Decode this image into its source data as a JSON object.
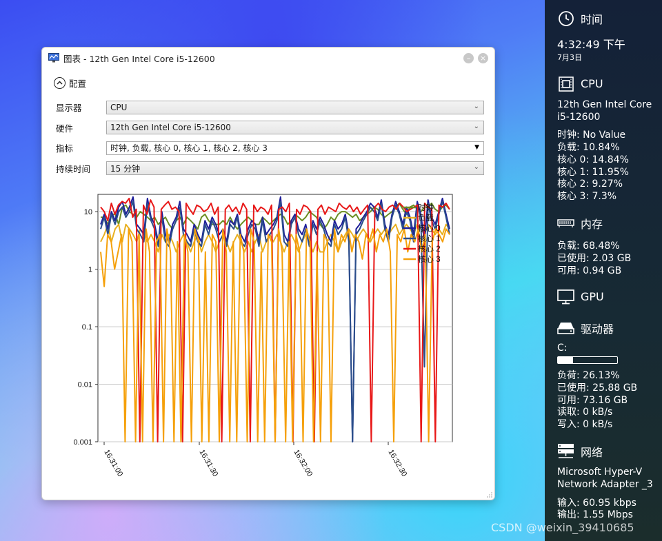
{
  "window": {
    "title": "图表 - 12th Gen Intel Core i5-12600",
    "config_label": "配置",
    "fields": [
      {
        "label": "显示器",
        "value": "CPU"
      },
      {
        "label": "硬件",
        "value": "12th Gen Intel Core i5-12600"
      },
      {
        "label": "指标",
        "value": "时钟, 负载, 核心 0, 核心 1, 核心 2, 核心 3"
      },
      {
        "label": "持续时间",
        "value": "15 分钟"
      }
    ]
  },
  "chart_data": {
    "type": "line",
    "yscale": "log",
    "ylim": [
      0.001,
      20
    ],
    "y_tick_labels": [
      "10",
      "1",
      "0.1",
      "0.01",
      "0.001"
    ],
    "x_tick_labels": [
      "16:31:00",
      "16:31:30",
      "16:32:00",
      "16:32:30"
    ],
    "grid": true,
    "legend_position": "top-right",
    "series": [
      {
        "name": "时钟",
        "color": "#6b8e23",
        "values": [
          8,
          8,
          6,
          9,
          9,
          6,
          12,
          13,
          10,
          9,
          8,
          10,
          9,
          8,
          7,
          8,
          6,
          7,
          8,
          6,
          5,
          7,
          8,
          6,
          8,
          7,
          6,
          5,
          8,
          9,
          7,
          6,
          6,
          6,
          7,
          6,
          8,
          6,
          5,
          6,
          7,
          8,
          7,
          6,
          6,
          8,
          7,
          6,
          7,
          8,
          9,
          8,
          6,
          7,
          9,
          8,
          7,
          8,
          10,
          9,
          8,
          6,
          5,
          6,
          8,
          7,
          9,
          10,
          10,
          9,
          8,
          9,
          7,
          8,
          9,
          10,
          12,
          11,
          9,
          8,
          9,
          10,
          12,
          14,
          11,
          9,
          12,
          13,
          11,
          10,
          12,
          12,
          14,
          11,
          10,
          12,
          13,
          11
        ]
      },
      {
        "name": "负载",
        "color": "#e8b020",
        "values": [
          3,
          4,
          6,
          3,
          5,
          6,
          3,
          6,
          5,
          4,
          3,
          5,
          4,
          3,
          4,
          3,
          2,
          4,
          3,
          4,
          3,
          2,
          3,
          4,
          3,
          2,
          3,
          4,
          2,
          3,
          4,
          3,
          2,
          3,
          4,
          3,
          2,
          3,
          4,
          3,
          2,
          3,
          2,
          3,
          4,
          2,
          3,
          4,
          3,
          4,
          3,
          2,
          3,
          4,
          3,
          2,
          3,
          4,
          3,
          2,
          3,
          2,
          2,
          3,
          4,
          3,
          2,
          3,
          4,
          5,
          4,
          3,
          4,
          5,
          4,
          3,
          4,
          5,
          4,
          5,
          4,
          5,
          6,
          4,
          5,
          6,
          5,
          4,
          6,
          5,
          4,
          6,
          5,
          4,
          5,
          4,
          6,
          5
        ]
      },
      {
        "name": "核心 0",
        "color": "#1f1f9a",
        "values": [
          6,
          9,
          5,
          10,
          7,
          12,
          15,
          9,
          12,
          18,
          6,
          5,
          4,
          17,
          8,
          6,
          3,
          10,
          4,
          3,
          6,
          8,
          15,
          5,
          4,
          3,
          6,
          4,
          3,
          7,
          5,
          8,
          6,
          4,
          5,
          3,
          7,
          6,
          9,
          4,
          3,
          5,
          7,
          6,
          3,
          8,
          4,
          5,
          6,
          8,
          18,
          4,
          3,
          7,
          9,
          5,
          4,
          6,
          3,
          7,
          5,
          8,
          6,
          4,
          3,
          7,
          5,
          6,
          9,
          4,
          0.001,
          5,
          6,
          8,
          10,
          14,
          12,
          8,
          16,
          6,
          4,
          9,
          15,
          10,
          6,
          12,
          8,
          4,
          15,
          9,
          3,
          16,
          8,
          6,
          10,
          17,
          9,
          5
        ]
      },
      {
        "name": "核心 1",
        "color": "#2a4e8a",
        "values": [
          5,
          8,
          4,
          9,
          6,
          10,
          12,
          8,
          10,
          15,
          5,
          4,
          3,
          14,
          7,
          5,
          2.5,
          8,
          3,
          2.5,
          5,
          7,
          12,
          4,
          3,
          2.5,
          5,
          3,
          2.5,
          6,
          4,
          7,
          5,
          3,
          4,
          2.5,
          6,
          5,
          8,
          3,
          2.5,
          4,
          6,
          5,
          2.5,
          7,
          3,
          4,
          5,
          7,
          15,
          3,
          2.5,
          6,
          8,
          4,
          3,
          5,
          2.5,
          6,
          4,
          7,
          5,
          3,
          2.5,
          6,
          4,
          5,
          8,
          3,
          0.001,
          4,
          5,
          7,
          9,
          12,
          10,
          7,
          14,
          5,
          3,
          8,
          13,
          9,
          5,
          10,
          7,
          3,
          13,
          8,
          0.02,
          14,
          7,
          5,
          9,
          15,
          8,
          4
        ]
      },
      {
        "name": "核心 2",
        "color": "#e81818",
        "values": [
          12,
          10,
          7,
          14,
          9,
          13,
          15,
          14,
          17,
          8,
          11,
          0.001,
          13,
          9,
          16,
          12,
          0.001,
          11,
          13,
          15,
          11,
          12,
          10,
          0.001,
          14,
          11,
          9,
          13,
          12,
          10,
          11,
          14,
          9,
          12,
          0.001,
          11,
          13,
          10,
          12,
          9,
          14,
          11,
          0.001,
          13,
          10,
          12,
          11,
          9,
          13,
          0.001,
          11,
          12,
          10,
          14,
          0.001,
          11,
          9,
          13,
          12,
          10,
          0.001,
          11,
          13,
          9,
          12,
          11,
          10,
          14,
          12,
          11,
          13,
          10,
          12,
          9,
          11,
          13,
          0.001,
          12,
          14,
          11,
          10,
          12,
          13,
          11,
          14,
          12,
          10,
          11,
          12,
          13,
          0.001,
          14,
          12,
          11,
          0.001,
          13,
          12,
          14,
          11
        ]
      },
      {
        "name": "核心 3",
        "color": "#f5a00a",
        "values": [
          2,
          0.5,
          4,
          3,
          1,
          2,
          4,
          0.001,
          5,
          3,
          0.001,
          4,
          0.001,
          5,
          2,
          0.001,
          3,
          4,
          0.001,
          5,
          2,
          0.001,
          3,
          0.001,
          4,
          2,
          0.001,
          5,
          3,
          0.001,
          2,
          0.001,
          4,
          3,
          0.001,
          5,
          2,
          0.001,
          3,
          0.001,
          4,
          2,
          0.001,
          5,
          3,
          0.001,
          2,
          0.001,
          4,
          3,
          0.001,
          5,
          2,
          0.001,
          3,
          0.001,
          4,
          2,
          0.001,
          5,
          3,
          0.001,
          2,
          0.001,
          4,
          3,
          0.001,
          5,
          2,
          4,
          3,
          5,
          2,
          4,
          3,
          1.5,
          4,
          3,
          5,
          2,
          4,
          3,
          5,
          2,
          0.001,
          4,
          3,
          5,
          2,
          4,
          3,
          5,
          2,
          4,
          0.001,
          3,
          5,
          4,
          3,
          5,
          4
        ]
      }
    ]
  },
  "sidebar": {
    "time": {
      "title": "时间",
      "clock": "4:32:49 下午",
      "date": "7月3日"
    },
    "cpu": {
      "title": "CPU",
      "name_line1": "12th Gen Intel Core",
      "name_line2": "i5-12600",
      "clock": "时钟: No Value",
      "load": "负载: 10.84%",
      "core0": "核心 0: 14.84%",
      "core1": "核心 1: 11.95%",
      "core2": "核心 2: 9.27%",
      "core3": "核心 3: 7.3%"
    },
    "memory": {
      "title": "内存",
      "load": "负载: 68.48%",
      "used": "已使用: 2.03 GB",
      "avail": "可用: 0.94 GB"
    },
    "gpu": {
      "title": "GPU"
    },
    "drive": {
      "title": "驱动器",
      "letter": "C:",
      "usage_fraction": 0.26,
      "load": "负荷: 26.13%",
      "used": "已使用: 25.88 GB",
      "avail": "可用: 73.16 GB",
      "read": "读取: 0 kB/s",
      "write": "写入: 0 kB/s"
    },
    "network": {
      "title": "网络",
      "name_line1": "Microsoft Hyper-V",
      "name_line2": "Network Adapter _3",
      "in": "输入: 60.95 kbps",
      "out": "输出: 1.55 Mbps"
    }
  },
  "watermark": "CSDN @weixin_39410685"
}
